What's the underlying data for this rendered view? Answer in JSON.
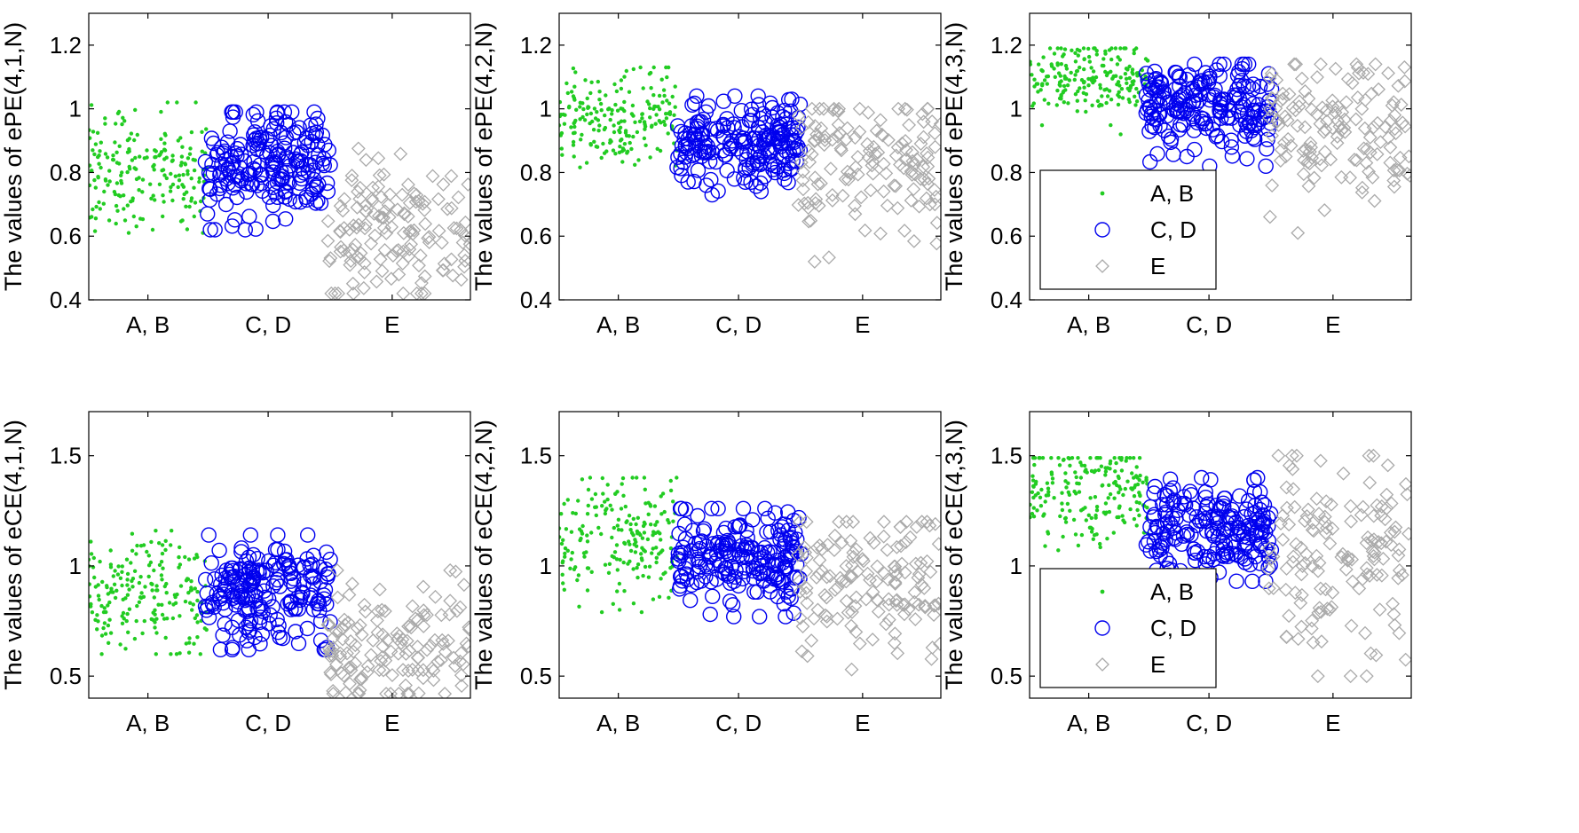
{
  "figure": {
    "rows": 2,
    "cols": 3
  },
  "marker_styles": {
    "A, B": {
      "shape": "dot",
      "color": "#22cc22"
    },
    "C, D": {
      "shape": "circle",
      "color": "#0000ee"
    },
    "E": {
      "shape": "diamond",
      "color": "#aaaaaa"
    }
  },
  "chart_data": [
    {
      "type": "scatter",
      "ylabel": "The values of ePE(4,1,N)",
      "ylim": [
        0.4,
        1.3
      ],
      "yticks": [
        0.4,
        0.6,
        0.8,
        1,
        1.2
      ],
      "xticklabels": [
        "A, B",
        "C, D",
        "E"
      ],
      "grid": false,
      "legend": null,
      "series": [
        {
          "name": "A, B",
          "marker": "dot",
          "color": "#22cc22",
          "y_mean": 0.8,
          "y_min": 0.61,
          "y_max": 1.02,
          "n": 200
        },
        {
          "name": "C, D",
          "marker": "circle",
          "color": "#0000ee",
          "y_mean": 0.82,
          "y_min": 0.62,
          "y_max": 0.99,
          "n": 200
        },
        {
          "name": "E",
          "marker": "diamond",
          "color": "#aaaaaa",
          "y_mean": 0.62,
          "y_min": 0.42,
          "y_max": 0.9,
          "n": 140
        }
      ]
    },
    {
      "type": "scatter",
      "ylabel": "The values of ePE(4,2,N)",
      "ylim": [
        0.4,
        1.3
      ],
      "yticks": [
        0.4,
        0.6,
        0.8,
        1,
        1.2
      ],
      "xticklabels": [
        "A, B",
        "C, D",
        "E"
      ],
      "grid": false,
      "legend": null,
      "series": [
        {
          "name": "A, B",
          "marker": "dot",
          "color": "#22cc22",
          "y_mean": 0.97,
          "y_min": 0.81,
          "y_max": 1.13,
          "n": 200
        },
        {
          "name": "C, D",
          "marker": "circle",
          "color": "#0000ee",
          "y_mean": 0.9,
          "y_min": 0.73,
          "y_max": 1.04,
          "n": 200
        },
        {
          "name": "E",
          "marker": "diamond",
          "color": "#aaaaaa",
          "y_mean": 0.82,
          "y_min": 0.52,
          "y_max": 1.0,
          "n": 140
        }
      ]
    },
    {
      "type": "scatter",
      "ylabel": "The values of ePE(4,3,N)",
      "ylim": [
        0.4,
        1.3
      ],
      "yticks": [
        0.4,
        0.6,
        0.8,
        1,
        1.2
      ],
      "xticklabels": [
        "A, B",
        "C, D",
        "E"
      ],
      "grid": false,
      "legend": {
        "position": "lower-left",
        "entries": [
          "A, B",
          "C, D",
          "E"
        ]
      },
      "series": [
        {
          "name": "A, B",
          "marker": "dot",
          "color": "#22cc22",
          "y_mean": 1.1,
          "y_min": 0.92,
          "y_max": 1.19,
          "n": 200
        },
        {
          "name": "C, D",
          "marker": "circle",
          "color": "#0000ee",
          "y_mean": 1.0,
          "y_min": 0.82,
          "y_max": 1.14,
          "n": 200
        },
        {
          "name": "E",
          "marker": "diamond",
          "color": "#aaaaaa",
          "y_mean": 0.95,
          "y_min": 0.61,
          "y_max": 1.14,
          "n": 140
        }
      ]
    },
    {
      "type": "scatter",
      "ylabel": "The values of eCE(4,1,N)",
      "ylim": [
        0.4,
        1.7
      ],
      "yticks": [
        0.5,
        1,
        1.5
      ],
      "xticklabels": [
        "A, B",
        "C, D",
        "E"
      ],
      "grid": false,
      "legend": null,
      "series": [
        {
          "name": "A, B",
          "marker": "dot",
          "color": "#22cc22",
          "y_mean": 0.87,
          "y_min": 0.6,
          "y_max": 1.16,
          "n": 200
        },
        {
          "name": "C, D",
          "marker": "circle",
          "color": "#0000ee",
          "y_mean": 0.88,
          "y_min": 0.62,
          "y_max": 1.14,
          "n": 200
        },
        {
          "name": "E",
          "marker": "diamond",
          "color": "#aaaaaa",
          "y_mean": 0.64,
          "y_min": 0.42,
          "y_max": 0.98,
          "n": 140
        }
      ]
    },
    {
      "type": "scatter",
      "ylabel": "The values of eCE(4,2,N)",
      "ylim": [
        0.4,
        1.7
      ],
      "yticks": [
        0.5,
        1,
        1.5
      ],
      "xticklabels": [
        "A, B",
        "C, D",
        "E"
      ],
      "grid": false,
      "legend": null,
      "series": [
        {
          "name": "A, B",
          "marker": "dot",
          "color": "#22cc22",
          "y_mean": 1.15,
          "y_min": 0.79,
          "y_max": 1.4,
          "n": 200
        },
        {
          "name": "C, D",
          "marker": "circle",
          "color": "#0000ee",
          "y_mean": 1.03,
          "y_min": 0.77,
          "y_max": 1.26,
          "n": 200
        },
        {
          "name": "E",
          "marker": "diamond",
          "color": "#aaaaaa",
          "y_mean": 0.93,
          "y_min": 0.44,
          "y_max": 1.2,
          "n": 140
        }
      ]
    },
    {
      "type": "scatter",
      "ylabel": "The values of eCE(4,3,N)",
      "ylim": [
        0.4,
        1.7
      ],
      "yticks": [
        0.5,
        1,
        1.5
      ],
      "xticklabels": [
        "A, B",
        "C, D",
        "E"
      ],
      "grid": false,
      "legend": {
        "position": "lower-left",
        "entries": [
          "A, B",
          "C, D",
          "E"
        ]
      },
      "series": [
        {
          "name": "A, B",
          "marker": "dot",
          "color": "#22cc22",
          "y_mean": 1.33,
          "y_min": 0.95,
          "y_max": 1.49,
          "n": 200
        },
        {
          "name": "C, D",
          "marker": "circle",
          "color": "#0000ee",
          "y_mean": 1.17,
          "y_min": 0.93,
          "y_max": 1.4,
          "n": 200
        },
        {
          "name": "E",
          "marker": "diamond",
          "color": "#aaaaaa",
          "y_mean": 1.07,
          "y_min": 0.5,
          "y_max": 1.5,
          "n": 140
        }
      ]
    }
  ]
}
